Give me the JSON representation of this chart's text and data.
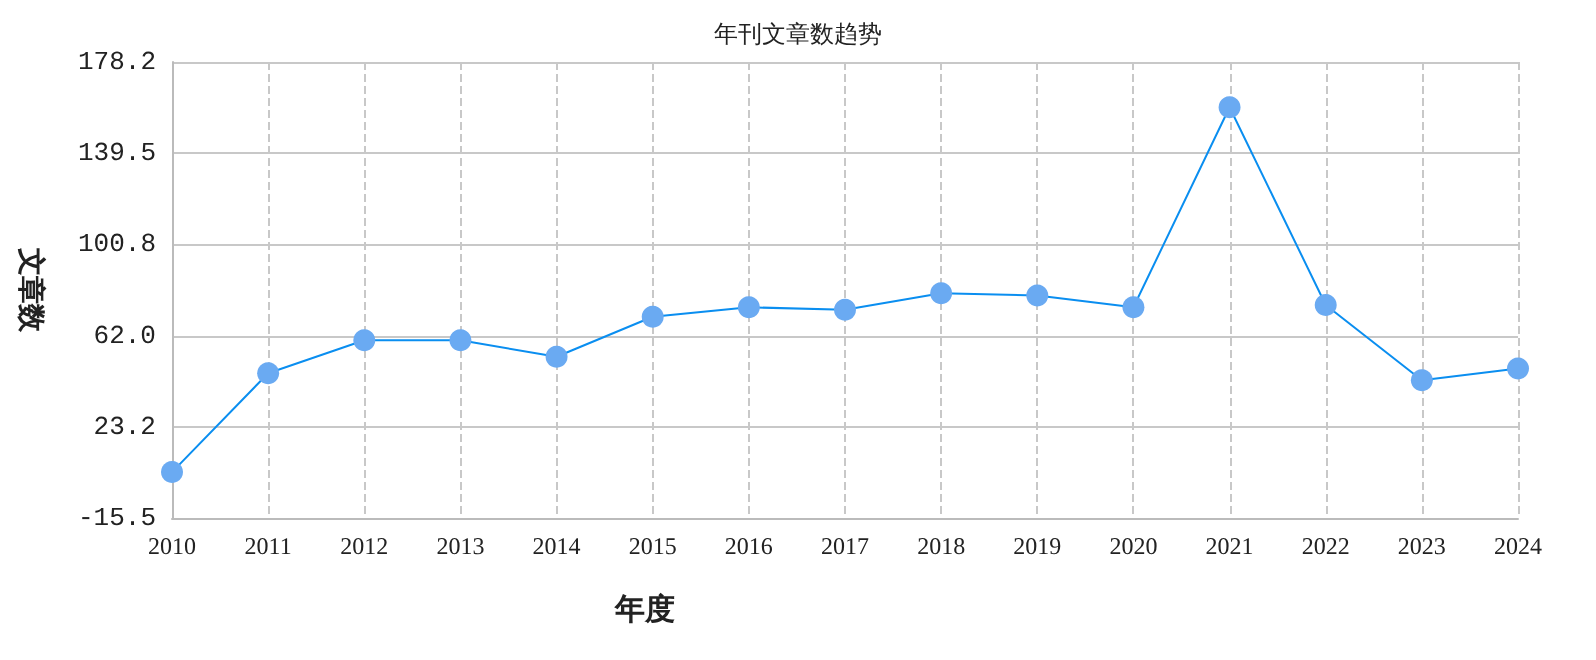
{
  "chart_data": {
    "type": "line",
    "title": "年刊文章数趋势",
    "xlabel": "年度",
    "ylabel": "文章数",
    "categories": [
      "2010",
      "2011",
      "2012",
      "2013",
      "2014",
      "2015",
      "2016",
      "2017",
      "2018",
      "2019",
      "2020",
      "2021",
      "2022",
      "2023",
      "2024"
    ],
    "series": [
      {
        "color": "#0a8ef0",
        "values": [
          4,
          46,
          60,
          60,
          53,
          70,
          74,
          73,
          80,
          79,
          74,
          159,
          75,
          43,
          48
        ]
      }
    ],
    "ylim": [
      -15.5,
      178.2
    ],
    "yticks": [
      -15.5,
      23.2,
      {
        "value": 62,
        "label": "62.0"
      },
      100.8,
      139.5,
      178.2
    ],
    "grid": true,
    "marker": "circle",
    "line_style": "solid"
  }
}
